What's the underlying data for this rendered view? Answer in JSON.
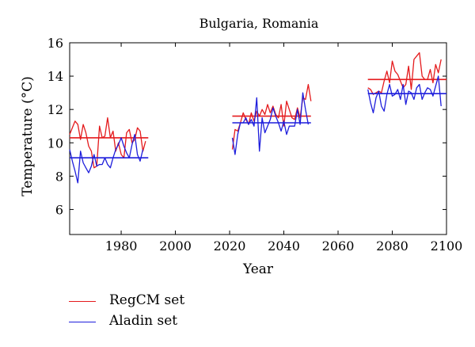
{
  "chart_data": {
    "type": "line",
    "title": "Bulgaria, Romania",
    "xlabel": "Year",
    "ylabel": "Temperature (°C)",
    "xlim": [
      1961,
      2100
    ],
    "ylim": [
      4.5,
      16
    ],
    "xticks": [
      1980,
      2000,
      2020,
      2040,
      2060,
      2080,
      2100
    ],
    "yticks": [
      6,
      8,
      10,
      12,
      14,
      16
    ],
    "grid": false,
    "legend_position": "bottom-left",
    "series": [
      {
        "name": "RegCM set",
        "color": "#e41a1c",
        "segments": [
          {
            "x_start": 1961,
            "values": [
              10.5,
              10.9,
              11.3,
              11.1,
              10.2,
              11.1,
              10.6,
              9.8,
              9.5,
              8.5,
              8.6,
              11.0,
              10.3,
              10.4,
              11.5,
              10.3,
              10.7,
              9.5,
              10.0,
              9.3,
              9.1,
              10.6,
              10.8,
              10.0,
              10.2,
              10.9,
              10.7,
              9.5,
              10.1
            ]
          },
          {
            "x_start": 2021,
            "values": [
              9.6,
              10.8,
              10.7,
              11.2,
              11.8,
              11.4,
              11.1,
              11.8,
              11.3,
              11.9,
              11.6,
              12.0,
              11.7,
              12.3,
              11.8,
              12.2,
              11.7,
              11.5,
              12.3,
              11.0,
              12.5,
              12.0,
              11.5,
              11.4,
              12.1,
              11.5,
              12.7,
              12.6,
              13.5,
              12.5
            ]
          },
          {
            "x_start": 2071,
            "values": [
              13.3,
              13.2,
              12.9,
              13.0,
              13.1,
              13.0,
              13.7,
              14.3,
              13.6,
              14.9,
              14.3,
              14.1,
              13.7,
              13.3,
              13.5,
              14.6,
              13.2,
              15.0,
              15.2,
              15.4,
              14.0,
              13.8,
              13.8,
              14.4,
              13.6,
              14.7,
              14.2,
              15.0
            ]
          }
        ],
        "means": [
          {
            "x_start": 1961,
            "x_end": 1990,
            "value": 10.3
          },
          {
            "x_start": 2021,
            "x_end": 2050,
            "value": 11.6
          },
          {
            "x_start": 2071,
            "x_end": 2100,
            "value": 13.8
          }
        ]
      },
      {
        "name": "Aladin set",
        "color": "#1e1edc",
        "segments": [
          {
            "x_start": 1961,
            "values": [
              9.6,
              8.9,
              8.3,
              7.6,
              9.5,
              8.8,
              8.5,
              8.2,
              8.6,
              9.3,
              8.6,
              8.7,
              8.7,
              9.1,
              8.7,
              8.5,
              9.1,
              9.6,
              9.9,
              10.3,
              9.8,
              9.4,
              9.1,
              9.9,
              10.5,
              9.3,
              8.9,
              9.6
            ]
          },
          {
            "x_start": 2021,
            "values": [
              10.3,
              9.3,
              10.5,
              11.2,
              11.2,
              11.5,
              11.1,
              11.4,
              11.0,
              12.7,
              9.5,
              11.5,
              10.6,
              11.0,
              11.4,
              12.1,
              11.6,
              11.2,
              10.7,
              11.3,
              10.5,
              11.0,
              11.0,
              11.0,
              12.0,
              11.1,
              13.0,
              12.0,
              11.1
            ]
          },
          {
            "x_start": 2071,
            "values": [
              13.2,
              12.4,
              11.8,
              12.7,
              13.1,
              12.2,
              11.9,
              12.9,
              13.5,
              12.8,
              12.9,
              13.2,
              12.6,
              13.5,
              12.3,
              13.1,
              13.0,
              12.6,
              13.3,
              13.5,
              12.6,
              13.0,
              13.3,
              13.2,
              12.8,
              13.4,
              14.0,
              12.2
            ]
          }
        ],
        "means": [
          {
            "x_start": 1961,
            "x_end": 1990,
            "value": 9.1
          },
          {
            "x_start": 2021,
            "x_end": 2050,
            "value": 11.2
          },
          {
            "x_start": 2071,
            "x_end": 2100,
            "value": 12.95
          }
        ]
      }
    ]
  }
}
